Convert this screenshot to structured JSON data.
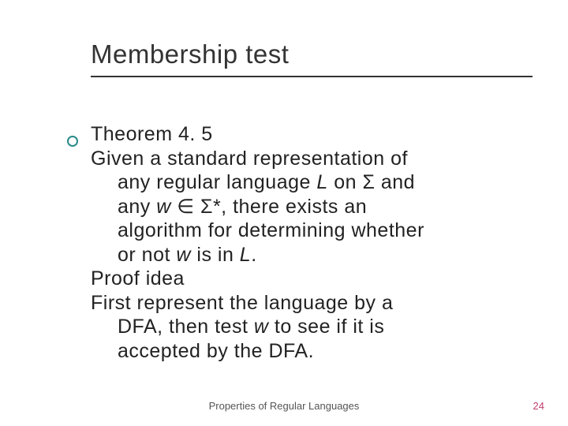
{
  "slide": {
    "title": "Membership test",
    "theorem_label": "Theorem 4. 5",
    "body_line1": "Given a standard representation of",
    "body_line2_a": "any regular language ",
    "body_line2_L": "L",
    "body_line2_b": " on Σ and",
    "body_line3_a": "any ",
    "body_line3_w": "w",
    "body_line3_b": " ∈ Σ*, there exists an",
    "body_line4": "algorithm for determining whether",
    "body_line5_a": "or not ",
    "body_line5_w": "w",
    "body_line5_b": " is in ",
    "body_line5_L": "L",
    "body_line5_c": ".",
    "proof_label": "Proof idea",
    "proof_line1": "First represent the language by a",
    "proof_line2_a": "DFA, then test ",
    "proof_line2_w": "w",
    "proof_line2_b": " to see if it is",
    "proof_line3": "accepted by the DFA.",
    "footer_center": "Properties of Regular Languages",
    "page_number": "24"
  },
  "style": {
    "title_fontsize": 33,
    "body_fontsize": 25,
    "footer_fontsize": 13,
    "rule_color": "#333333",
    "bullet_color": "#2a8a8a",
    "page_number_color": "#c04070",
    "background": "#ffffff"
  }
}
